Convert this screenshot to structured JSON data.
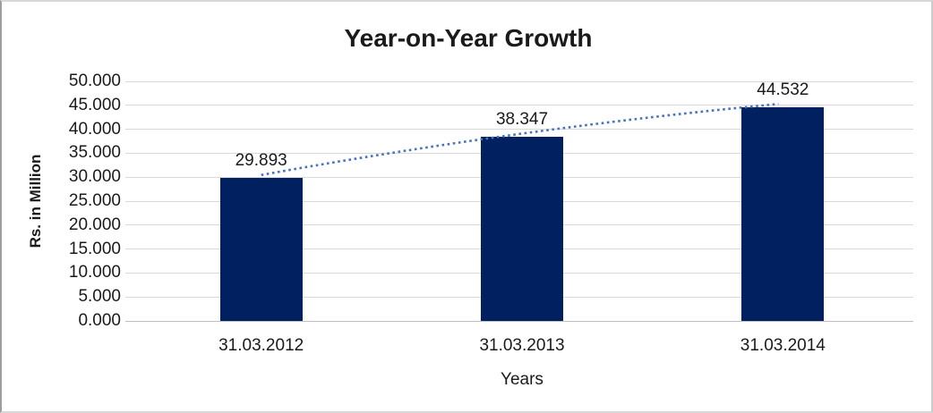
{
  "window": {
    "background_color": "#ffffff",
    "border_color": "#d8d8d8"
  },
  "chart_data": {
    "type": "bar",
    "title": "Year-on-Year Growth",
    "xlabel": "Years",
    "ylabel": "Rs. in Million",
    "categories": [
      "31.03.2012",
      "31.03.2013",
      "31.03.2014"
    ],
    "series": [
      {
        "name": "Year-on-Year Growth",
        "values": [
          29.893,
          38.347,
          44.532
        ],
        "data_labels": [
          "29.893",
          "38.347",
          "44.532"
        ],
        "color": "#002060"
      }
    ],
    "ylim": [
      0,
      50
    ],
    "y_tick_step": 5,
    "y_tick_labels": [
      "0.000",
      "5.000",
      "10.000",
      "15.000",
      "20.000",
      "25.000",
      "30.000",
      "35.000",
      "40.000",
      "45.000",
      "50.000"
    ],
    "grid": true,
    "legend": false,
    "gridline_color": "#d9d9d9",
    "axis_line_color": "#bfbfbf",
    "trendline": {
      "style": "dotted",
      "color": "#4472c4"
    }
  }
}
